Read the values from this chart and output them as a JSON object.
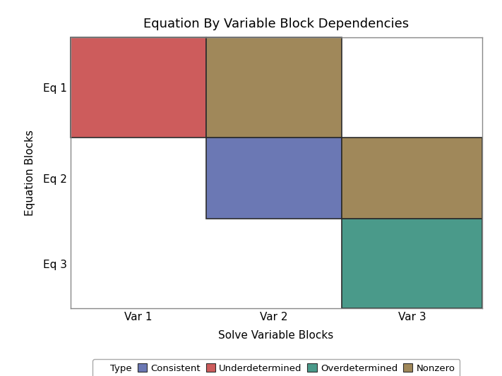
{
  "title": "Equation By Variable Block Dependencies",
  "xlabel": "Solve Variable Blocks",
  "ylabel": "Equation Blocks",
  "eq_labels": [
    "Eq 1",
    "Eq 2",
    "Eq 3"
  ],
  "var_labels": [
    "Var 1",
    "Var 2",
    "Var 3"
  ],
  "blocks": [
    {
      "eq": 0,
      "var": 0,
      "type": "Underdetermined",
      "color": "#CD5C5C"
    },
    {
      "eq": 0,
      "var": 1,
      "type": "Nonzero",
      "color": "#A0885A"
    },
    {
      "eq": 1,
      "var": 1,
      "type": "Consistent",
      "color": "#6B78B4"
    },
    {
      "eq": 1,
      "var": 2,
      "type": "Nonzero",
      "color": "#A0885A"
    },
    {
      "eq": 2,
      "var": 2,
      "type": "Overdetermined",
      "color": "#4A9A8A"
    }
  ],
  "legend_items": [
    {
      "label": "Consistent",
      "color": "#6B78B4"
    },
    {
      "label": "Underdetermined",
      "color": "#CD5C5C"
    },
    {
      "label": "Overdetermined",
      "color": "#4A9A8A"
    },
    {
      "label": "Nonzero",
      "color": "#A0885A"
    }
  ],
  "background_color": "#FFFFFF",
  "edge_color": "#2C2C2C",
  "title_fontsize": 13,
  "label_fontsize": 11,
  "tick_fontsize": 11,
  "var_boundaries": [
    0.0,
    0.33,
    0.66,
    1.0
  ],
  "eq_boundaries": [
    0.0,
    0.37,
    0.67,
    1.0
  ]
}
